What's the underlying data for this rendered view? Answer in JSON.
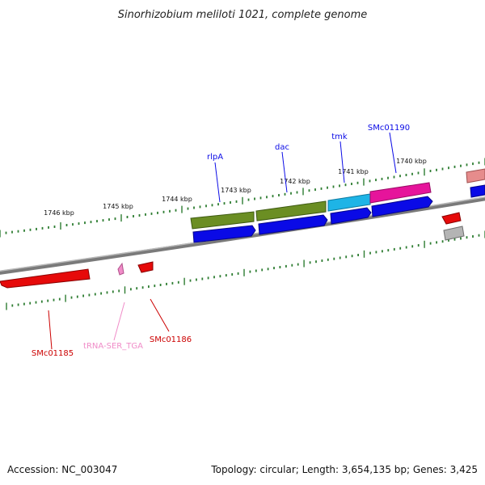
{
  "title": "Sinorhizobium meliloti 1021, complete genome",
  "footer": {
    "accession": "Accession: NC_003047",
    "topology": "Topology: circular; Length: 3,654,135 bp; Genes: 3,425"
  },
  "colors": {
    "backbone": "#8c8c8c",
    "tick": "#2e7d32",
    "cds_blue": "#0a0ae6",
    "cds_olive": "#6b8e23",
    "cds_cyan": "#1eb4e6",
    "cds_magenta": "#e6149b",
    "cds_red": "#e60a0a",
    "cds_grey": "#b4b4b4",
    "cds_salmon": "#e68c8c",
    "trna_pink": "#f08cc8",
    "label_blue": "#0a0ae6",
    "label_red": "#cc0000",
    "label_pink": "#f08cc8"
  },
  "scale_labels": [
    "1746 kbp",
    "1745 kbp",
    "1744 kbp",
    "1743 kbp",
    "1742 kbp",
    "1741 kbp",
    "1740 kbp"
  ],
  "gene_labels": [
    "rlpA",
    "dac",
    "tmk",
    "SMc01190",
    "SMc01185",
    "tRNA-SER_TGA",
    "SMc01186"
  ]
}
